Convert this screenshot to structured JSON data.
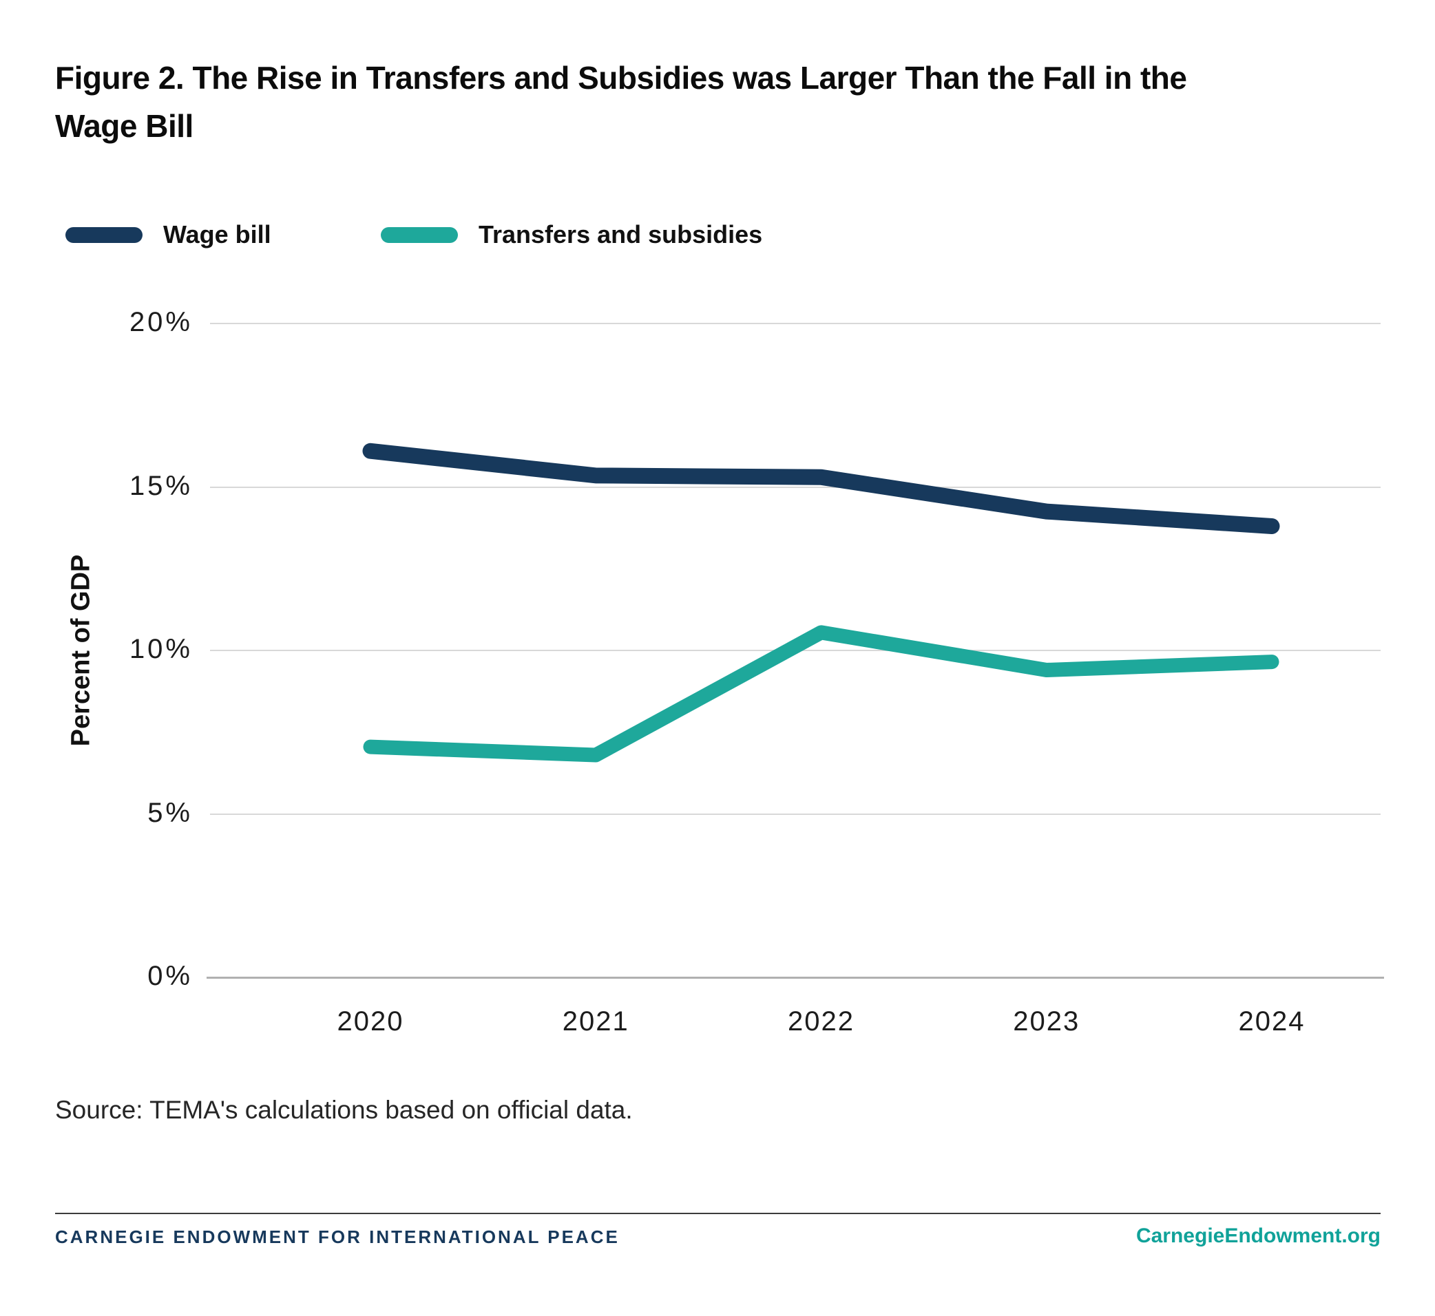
{
  "title_lines": [
    "Figure 2. The Rise in Transfers and Subsidies was Larger Than the Fall in the",
    "Wage Bill"
  ],
  "legend": [
    {
      "label": "Wage bill",
      "color": "#17395c"
    },
    {
      "label": "Transfers and subsidies",
      "color": "#1ea89b"
    }
  ],
  "chart_data": {
    "type": "line",
    "x": [
      "2020",
      "2021",
      "2022",
      "2023",
      "2024"
    ],
    "series": [
      {
        "name": "Wage bill",
        "color": "#17395c",
        "values": [
          16.1,
          15.35,
          15.3,
          14.25,
          13.8
        ]
      },
      {
        "name": "Transfers and subsidies",
        "color": "#1ea89b",
        "values": [
          7.05,
          6.8,
          10.55,
          9.4,
          9.65
        ]
      }
    ],
    "title": "Figure 2. The Rise in Transfers and Subsidies was Larger Than the Fall in the Wage Bill",
    "xlabel": "",
    "ylabel": "Percent of GDP",
    "ylim": [
      0,
      20
    ],
    "yticks": [
      0,
      5,
      10,
      15,
      20
    ],
    "ytick_labels": [
      "0%",
      "5%",
      "10%",
      "15%",
      "20%"
    ],
    "grid": true,
    "legend_position": "top-left"
  },
  "source": "Source: TEMA's calculations based on official data.",
  "footer": {
    "left": "CARNEGIE ENDOWMENT FOR INTERNATIONAL PEACE",
    "right": "CarnegieEndowment.org"
  },
  "colors": {
    "navy": "#17395c",
    "teal": "#1ea89b",
    "grid": "#d8d8d8",
    "axis": "#b0b0b0"
  }
}
